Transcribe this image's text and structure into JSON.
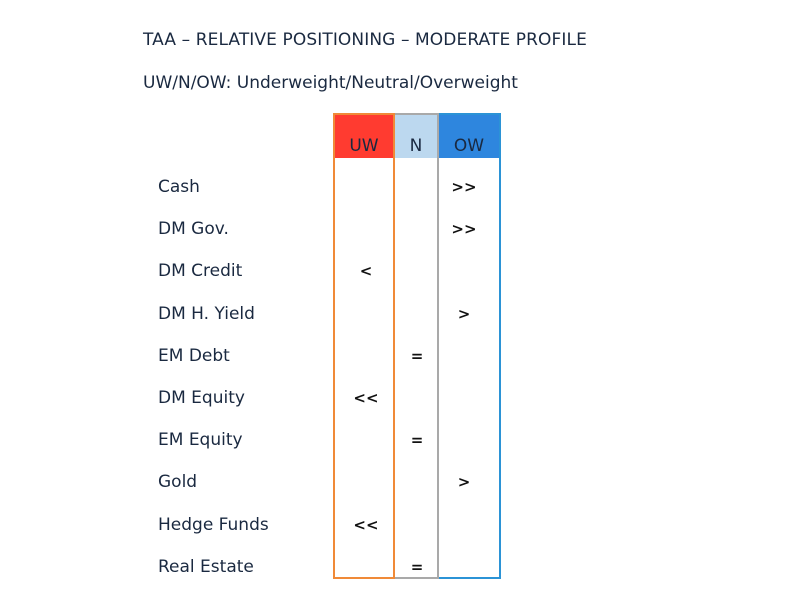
{
  "chart_data": {
    "type": "table",
    "title": "TAA – RELATIVE POSITIONING – MODERATE PROFILE",
    "subtitle": "UW/N/OW: Underweight/Neutral/Overweight",
    "columns": [
      {
        "key": "UW",
        "label": "UW",
        "header_color": "#ff3b30",
        "border_color": "#f08a38"
      },
      {
        "key": "N",
        "label": "N",
        "header_color": "#bcd8ef",
        "border_color": "#a9a9a9"
      },
      {
        "key": "OW",
        "label": "OW",
        "header_color": "#2e86de",
        "border_color": "#2b93d6"
      }
    ],
    "rows": [
      {
        "asset": "Cash",
        "column": "OW",
        "signal": ">>"
      },
      {
        "asset": "DM Gov.",
        "column": "OW",
        "signal": ">>"
      },
      {
        "asset": "DM Credit",
        "column": "UW",
        "signal": "<"
      },
      {
        "asset": "DM H. Yield",
        "column": "OW",
        "signal": ">"
      },
      {
        "asset": "EM Debt",
        "column": "N",
        "signal": "="
      },
      {
        "asset": "DM Equity",
        "column": "UW",
        "signal": "<<"
      },
      {
        "asset": "EM Equity",
        "column": "N",
        "signal": "="
      },
      {
        "asset": "Gold",
        "column": "OW",
        "signal": ">"
      },
      {
        "asset": "Hedge Funds",
        "column": "UW",
        "signal": "<<"
      },
      {
        "asset": "Real Estate",
        "column": "N",
        "signal": "="
      }
    ]
  }
}
